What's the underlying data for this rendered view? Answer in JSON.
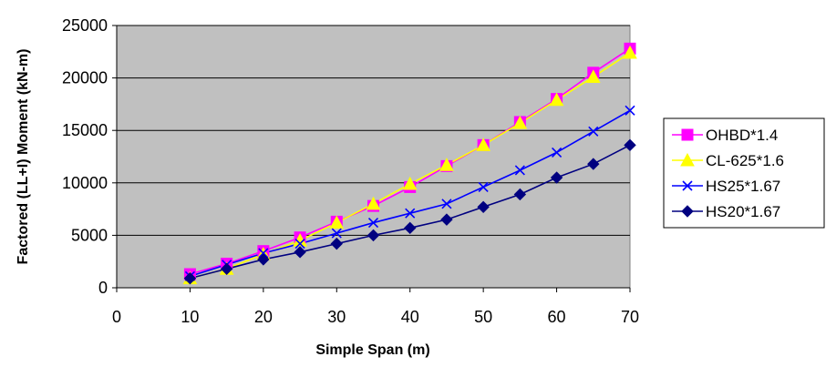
{
  "chart_data": {
    "type": "line",
    "title": "",
    "xlabel": "Simple Span (m)",
    "ylabel": "Factored (LL+I) Moment (kN-m)",
    "xlim": [
      0,
      70
    ],
    "ylim": [
      0,
      25000
    ],
    "x_ticks": [
      "0",
      "10",
      "20",
      "30",
      "40",
      "50",
      "60",
      "70"
    ],
    "y_ticks": [
      "0",
      "5000",
      "10000",
      "15000",
      "20000",
      "25000"
    ],
    "x": [
      10,
      15,
      20,
      25,
      30,
      35,
      40,
      45,
      50,
      55,
      60,
      65,
      70
    ],
    "grid": "horizontal",
    "plot_background": "#c0c0c0",
    "legend_position": "right",
    "series": [
      {
        "name": "OHBD*1.4",
        "color": "#ff00ff",
        "marker": "square",
        "values": [
          1300,
          2300,
          3500,
          4800,
          6300,
          7800,
          9600,
          11600,
          13600,
          15800,
          18000,
          20500,
          22800
        ]
      },
      {
        "name": "CL-625*1.6",
        "color": "#ffff00",
        "marker": "triangle",
        "values": [
          900,
          1800,
          3200,
          4500,
          6200,
          8000,
          9900,
          11700,
          13600,
          15700,
          17900,
          20100,
          22400
        ]
      },
      {
        "name": "HS25*1.67",
        "color": "#0000ff",
        "marker": "x",
        "values": [
          1100,
          2200,
          3300,
          4200,
          5200,
          6200,
          7100,
          8000,
          9600,
          11200,
          12900,
          14900,
          16900
        ]
      },
      {
        "name": "HS20*1.67",
        "color": "#000080",
        "marker": "diamond",
        "values": [
          900,
          1800,
          2700,
          3400,
          4200,
          5000,
          5700,
          6500,
          7700,
          8900,
          10500,
          11800,
          13600
        ]
      }
    ]
  }
}
